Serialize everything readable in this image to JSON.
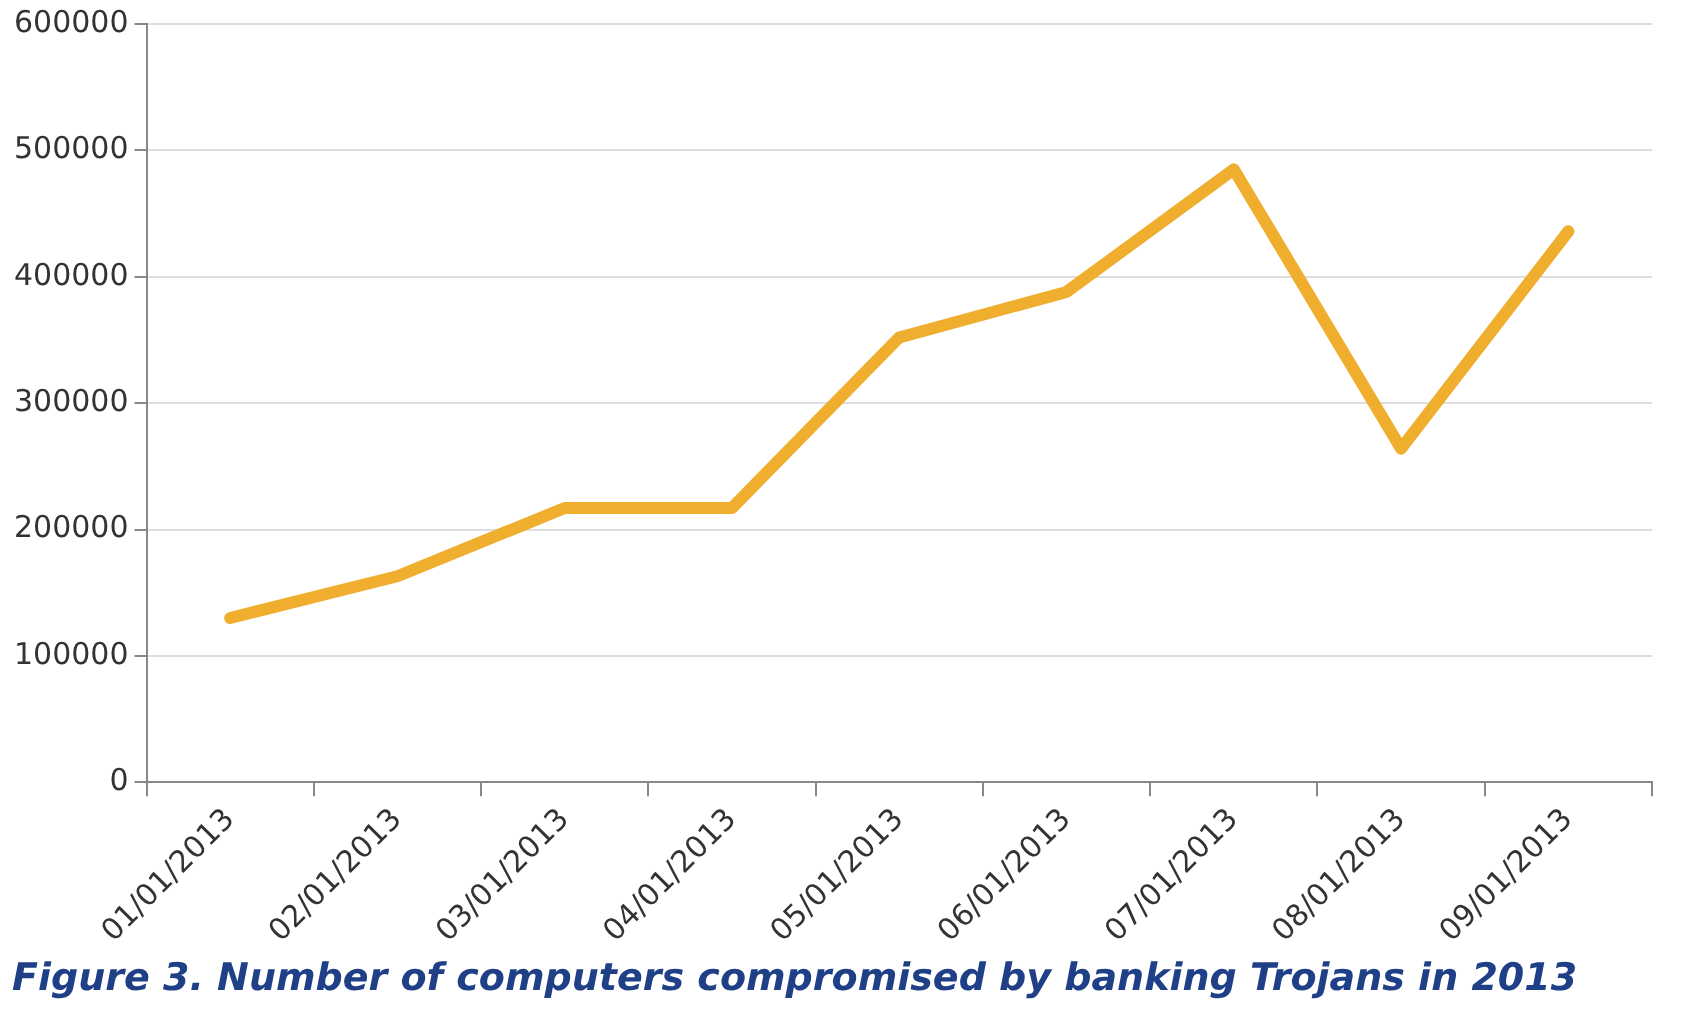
{
  "chart_data": {
    "type": "line",
    "categories": [
      "01/01/2013",
      "02/01/2013",
      "03/01/2013",
      "04/01/2013",
      "05/01/2013",
      "06/01/2013",
      "07/01/2013",
      "08/01/2013",
      "09/01/2013"
    ],
    "series": [
      {
        "color": "#f0ae2e",
        "values": [
          130000,
          163000,
          217000,
          217000,
          352000,
          388000,
          485000,
          264000,
          436000
        ]
      }
    ],
    "ylim": [
      0,
      600000
    ],
    "yticks": [
      0,
      100000,
      200000,
      300000,
      400000,
      500000,
      600000
    ],
    "grid": "y",
    "legend": false,
    "marker": "none",
    "line_style": "solid",
    "annotations": [
      "Figure 3. Number of computers compromised by banking Trojans in 2013"
    ]
  }
}
